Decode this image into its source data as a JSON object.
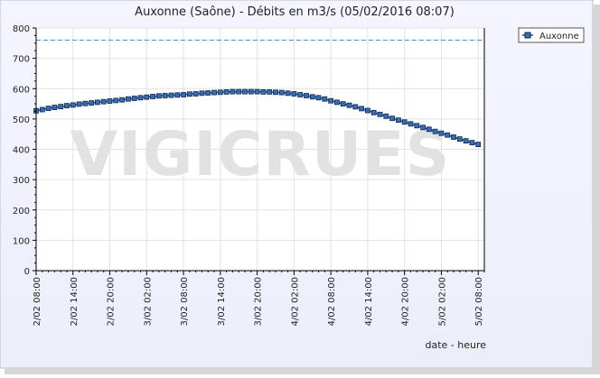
{
  "chart_data": {
    "type": "line",
    "title": "Auxonne (Saône) - Débits en m3/s (05/02/2016 08:07)",
    "xlabel": "date - heure",
    "ylabel": "",
    "ylim": [
      0,
      800
    ],
    "yticks": [
      0,
      100,
      200,
      300,
      400,
      500,
      600,
      700,
      800
    ],
    "x_tick_labels": [
      "2/02 08:00",
      "2/02 14:00",
      "2/02 20:00",
      "3/02 02:00",
      "3/02 08:00",
      "3/02 14:00",
      "3/02 20:00",
      "4/02 02:00",
      "4/02 08:00",
      "4/02 14:00",
      "4/02 20:00",
      "5/02 02:00",
      "5/02 08:00"
    ],
    "x_range_hours": [
      0,
      73
    ],
    "grid": true,
    "legend": {
      "position": "top-right",
      "entries": [
        "Auxonne"
      ]
    },
    "watermark": "VIGICRUES",
    "reference_line": {
      "value": 760,
      "style": "dashed",
      "color": "#3a9ad6"
    },
    "series": [
      {
        "name": "Auxonne",
        "color": "#1a4a8a",
        "marker": "square",
        "x_hours": [
          0,
          1,
          2,
          3,
          4,
          5,
          6,
          7,
          8,
          9,
          10,
          11,
          12,
          13,
          14,
          15,
          16,
          17,
          18,
          19,
          20,
          21,
          22,
          23,
          24,
          25,
          26,
          27,
          28,
          29,
          30,
          31,
          32,
          33,
          34,
          35,
          36,
          37,
          38,
          39,
          40,
          41,
          42,
          43,
          44,
          45,
          46,
          47,
          48,
          49,
          50,
          51,
          52,
          53,
          54,
          55,
          56,
          57,
          58,
          59,
          60,
          61,
          62,
          63,
          64,
          65,
          66,
          67,
          68,
          69,
          70,
          71,
          72
        ],
        "values": [
          527,
          531,
          535,
          538,
          541,
          544,
          546,
          549,
          551,
          553,
          555,
          557,
          559,
          561,
          563,
          566,
          568,
          570,
          572,
          574,
          576,
          577,
          578,
          579,
          580,
          582,
          583,
          585,
          586,
          587,
          588,
          589,
          590,
          590,
          590,
          590,
          590,
          589,
          589,
          588,
          587,
          585,
          583,
          580,
          577,
          573,
          570,
          566,
          560,
          555,
          550,
          545,
          540,
          534,
          528,
          521,
          515,
          509,
          502,
          496,
          490,
          484,
          478,
          472,
          466,
          459,
          453,
          447,
          440,
          434,
          428,
          422,
          416
        ]
      }
    ]
  }
}
